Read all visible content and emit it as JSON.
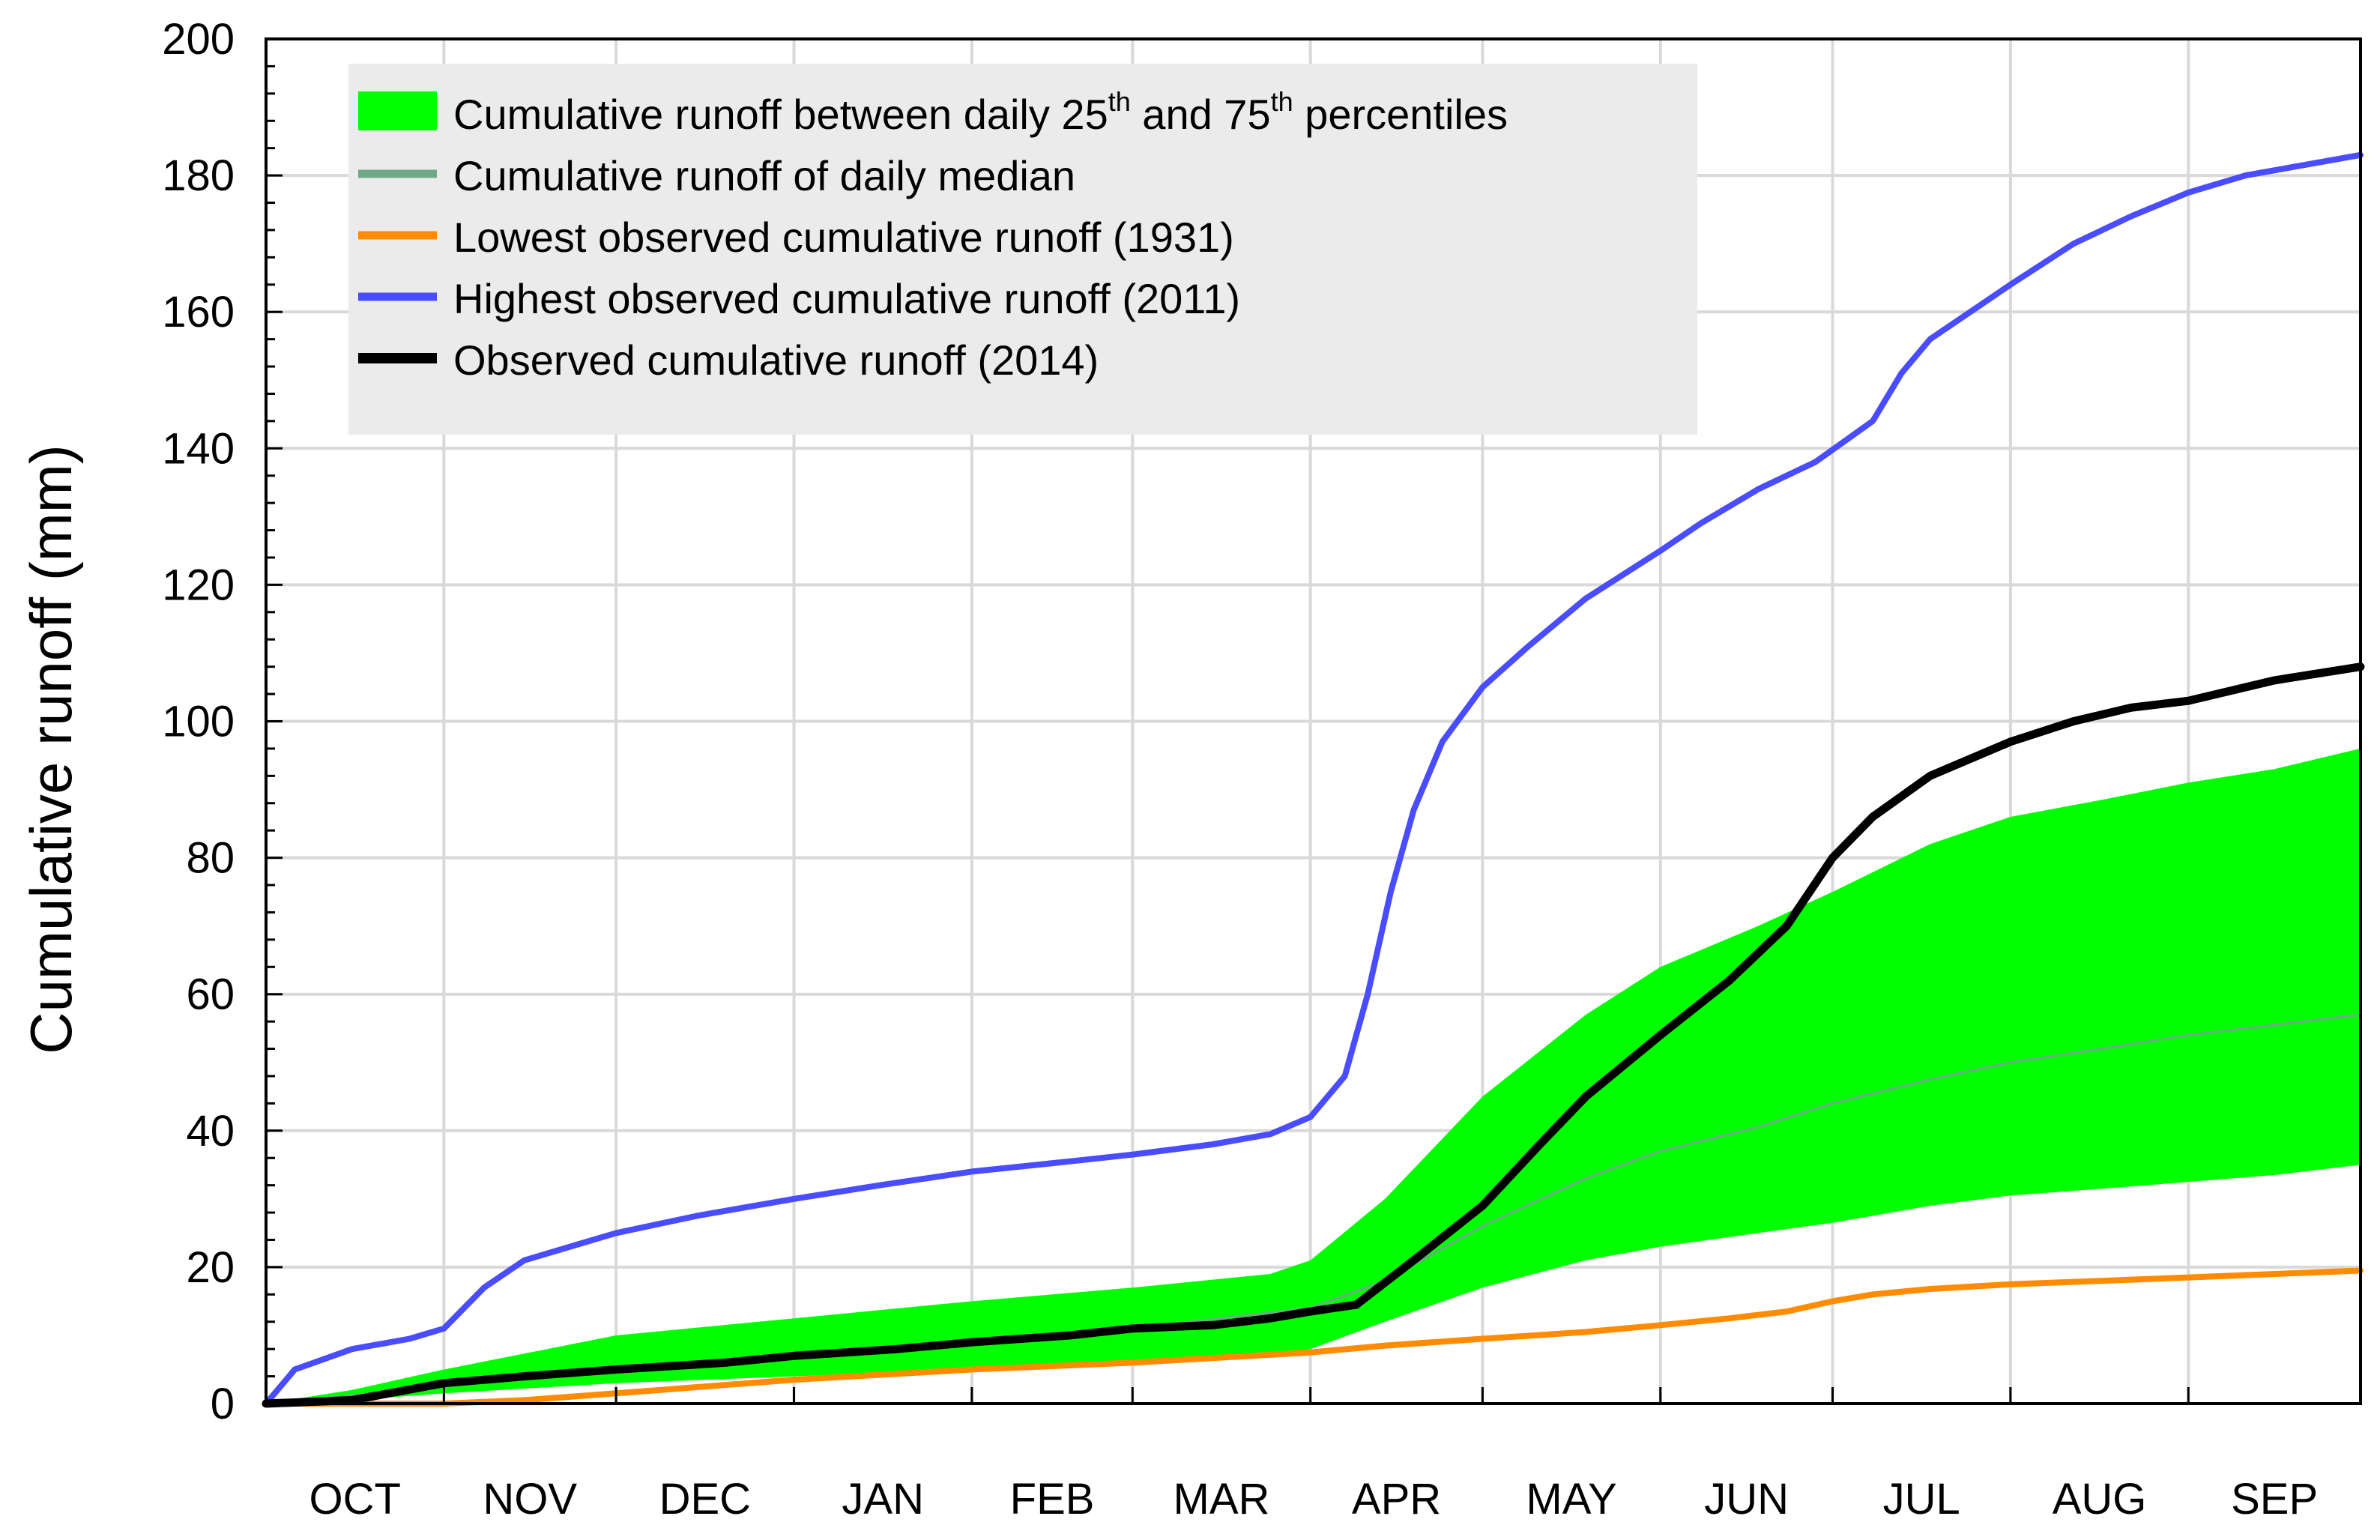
{
  "chart_data": {
    "type": "line",
    "title": "",
    "xlabel": "",
    "ylabel": "Cumulative runoff (mm)",
    "ylim": [
      0,
      200
    ],
    "yticks": [
      0,
      20,
      40,
      60,
      80,
      100,
      120,
      140,
      160,
      180,
      200
    ],
    "xlim": [
      0,
      365
    ],
    "month_labels": [
      "OCT",
      "NOV",
      "DEC",
      "JAN",
      "FEB",
      "MAR",
      "APR",
      "MAY",
      "JUN",
      "JUL",
      "AUG",
      "SEP"
    ],
    "month_boundaries_day": [
      31,
      61,
      92,
      123,
      151,
      182,
      212,
      243,
      273,
      304,
      335
    ],
    "grid": true,
    "legend": {
      "placement": "top-left",
      "entries": [
        {
          "name": "Cumulative runoff between daily 25th and 75th percentiles",
          "pre": "Cumulative runoff between daily 25",
          "sup1": "th",
          "mid": " and 75",
          "sup2": "th",
          "post": " percentiles",
          "color": "#00ff00",
          "style": "band"
        },
        {
          "name": "Cumulative runoff of daily median",
          "color": "#6fa98a",
          "style": "line"
        },
        {
          "name": "Lowest observed cumulative runoff (1931)",
          "color": "#ff8c00",
          "style": "line"
        },
        {
          "name": "Highest observed cumulative runoff (2011)",
          "color": "#4a4cff",
          "style": "line"
        },
        {
          "name": "Observed cumulative runoff (2014)",
          "color": "#000000",
          "style": "line"
        }
      ]
    },
    "series": [
      {
        "name": "Cumulative runoff between daily 25th and 75th percentiles",
        "type": "band",
        "color": "#00ff00",
        "x": [
          0,
          15,
          31,
          61,
          92,
          123,
          151,
          175,
          182,
          195,
          212,
          230,
          243,
          260,
          273,
          290,
          304,
          320,
          335,
          350,
          365
        ],
        "lower": [
          0,
          0.5,
          1.5,
          3,
          4,
          5,
          6,
          7,
          8,
          12,
          17,
          21,
          23,
          25,
          26.5,
          29,
          30.5,
          31.5,
          32.5,
          33.5,
          35
        ],
        "upper": [
          0,
          2,
          5,
          10,
          12.5,
          15,
          17,
          19,
          21,
          30,
          45,
          57,
          64,
          70,
          75,
          82,
          86,
          88.5,
          91,
          93,
          96
        ]
      },
      {
        "name": "Cumulative runoff of daily median",
        "type": "line",
        "color": "#6fa98a",
        "x": [
          0,
          31,
          61,
          92,
          123,
          151,
          182,
          195,
          212,
          230,
          243,
          260,
          273,
          290,
          304,
          320,
          335,
          350,
          365
        ],
        "values": [
          0,
          2.5,
          5,
          7,
          9,
          11,
          14,
          18,
          26,
          33,
          37,
          40.5,
          44,
          47.5,
          50,
          52,
          54,
          55.5,
          57
        ]
      },
      {
        "name": "Lowest observed cumulative runoff (1931)",
        "type": "line",
        "color": "#ff8c00",
        "x": [
          0,
          31,
          45,
          61,
          92,
          123,
          151,
          182,
          195,
          212,
          230,
          243,
          255,
          265,
          273,
          280,
          290,
          304,
          320,
          335,
          350,
          365
        ],
        "values": [
          0,
          0,
          0.5,
          1.5,
          3.5,
          5,
          6,
          7.5,
          8.5,
          9.5,
          10.5,
          11.5,
          12.5,
          13.5,
          15,
          16,
          16.8,
          17.5,
          18,
          18.5,
          19,
          19.5
        ]
      },
      {
        "name": "Highest observed cumulative runoff (2011)",
        "type": "line",
        "color": "#4a4cff",
        "x": [
          0,
          5,
          15,
          25,
          31,
          38,
          45,
          55,
          61,
          75,
          92,
          107,
          123,
          140,
          151,
          165,
          175,
          182,
          188,
          192,
          196,
          200,
          205,
          212,
          220,
          230,
          243,
          250,
          260,
          270,
          275,
          280,
          285,
          290,
          304,
          315,
          325,
          335,
          345,
          355,
          365
        ],
        "values": [
          0,
          5,
          8,
          9.5,
          11,
          17,
          21,
          23.5,
          25,
          27.5,
          30,
          32,
          34,
          35.5,
          36.5,
          38,
          39.5,
          42,
          48,
          60,
          75,
          87,
          97,
          105,
          111,
          118,
          125,
          129,
          134,
          138,
          141,
          144,
          151,
          156,
          164,
          170,
          174,
          177.5,
          180,
          181.5,
          183
        ]
      },
      {
        "name": "Observed cumulative runoff (2014)",
        "type": "line",
        "color": "#000000",
        "x": [
          0,
          15,
          31,
          45,
          61,
          80,
          92,
          110,
          123,
          140,
          151,
          165,
          175,
          182,
          190,
          200,
          212,
          222,
          230,
          243,
          255,
          265,
          273,
          280,
          290,
          304,
          315,
          325,
          335,
          350,
          365
        ],
        "values": [
          0,
          0.5,
          3,
          4,
          5,
          6,
          7,
          8,
          9,
          10,
          11,
          11.5,
          12.5,
          13.5,
          14.5,
          21,
          29,
          38,
          45,
          54,
          62,
          70,
          80,
          86,
          92,
          97,
          100,
          102,
          103,
          106,
          108
        ]
      }
    ]
  }
}
